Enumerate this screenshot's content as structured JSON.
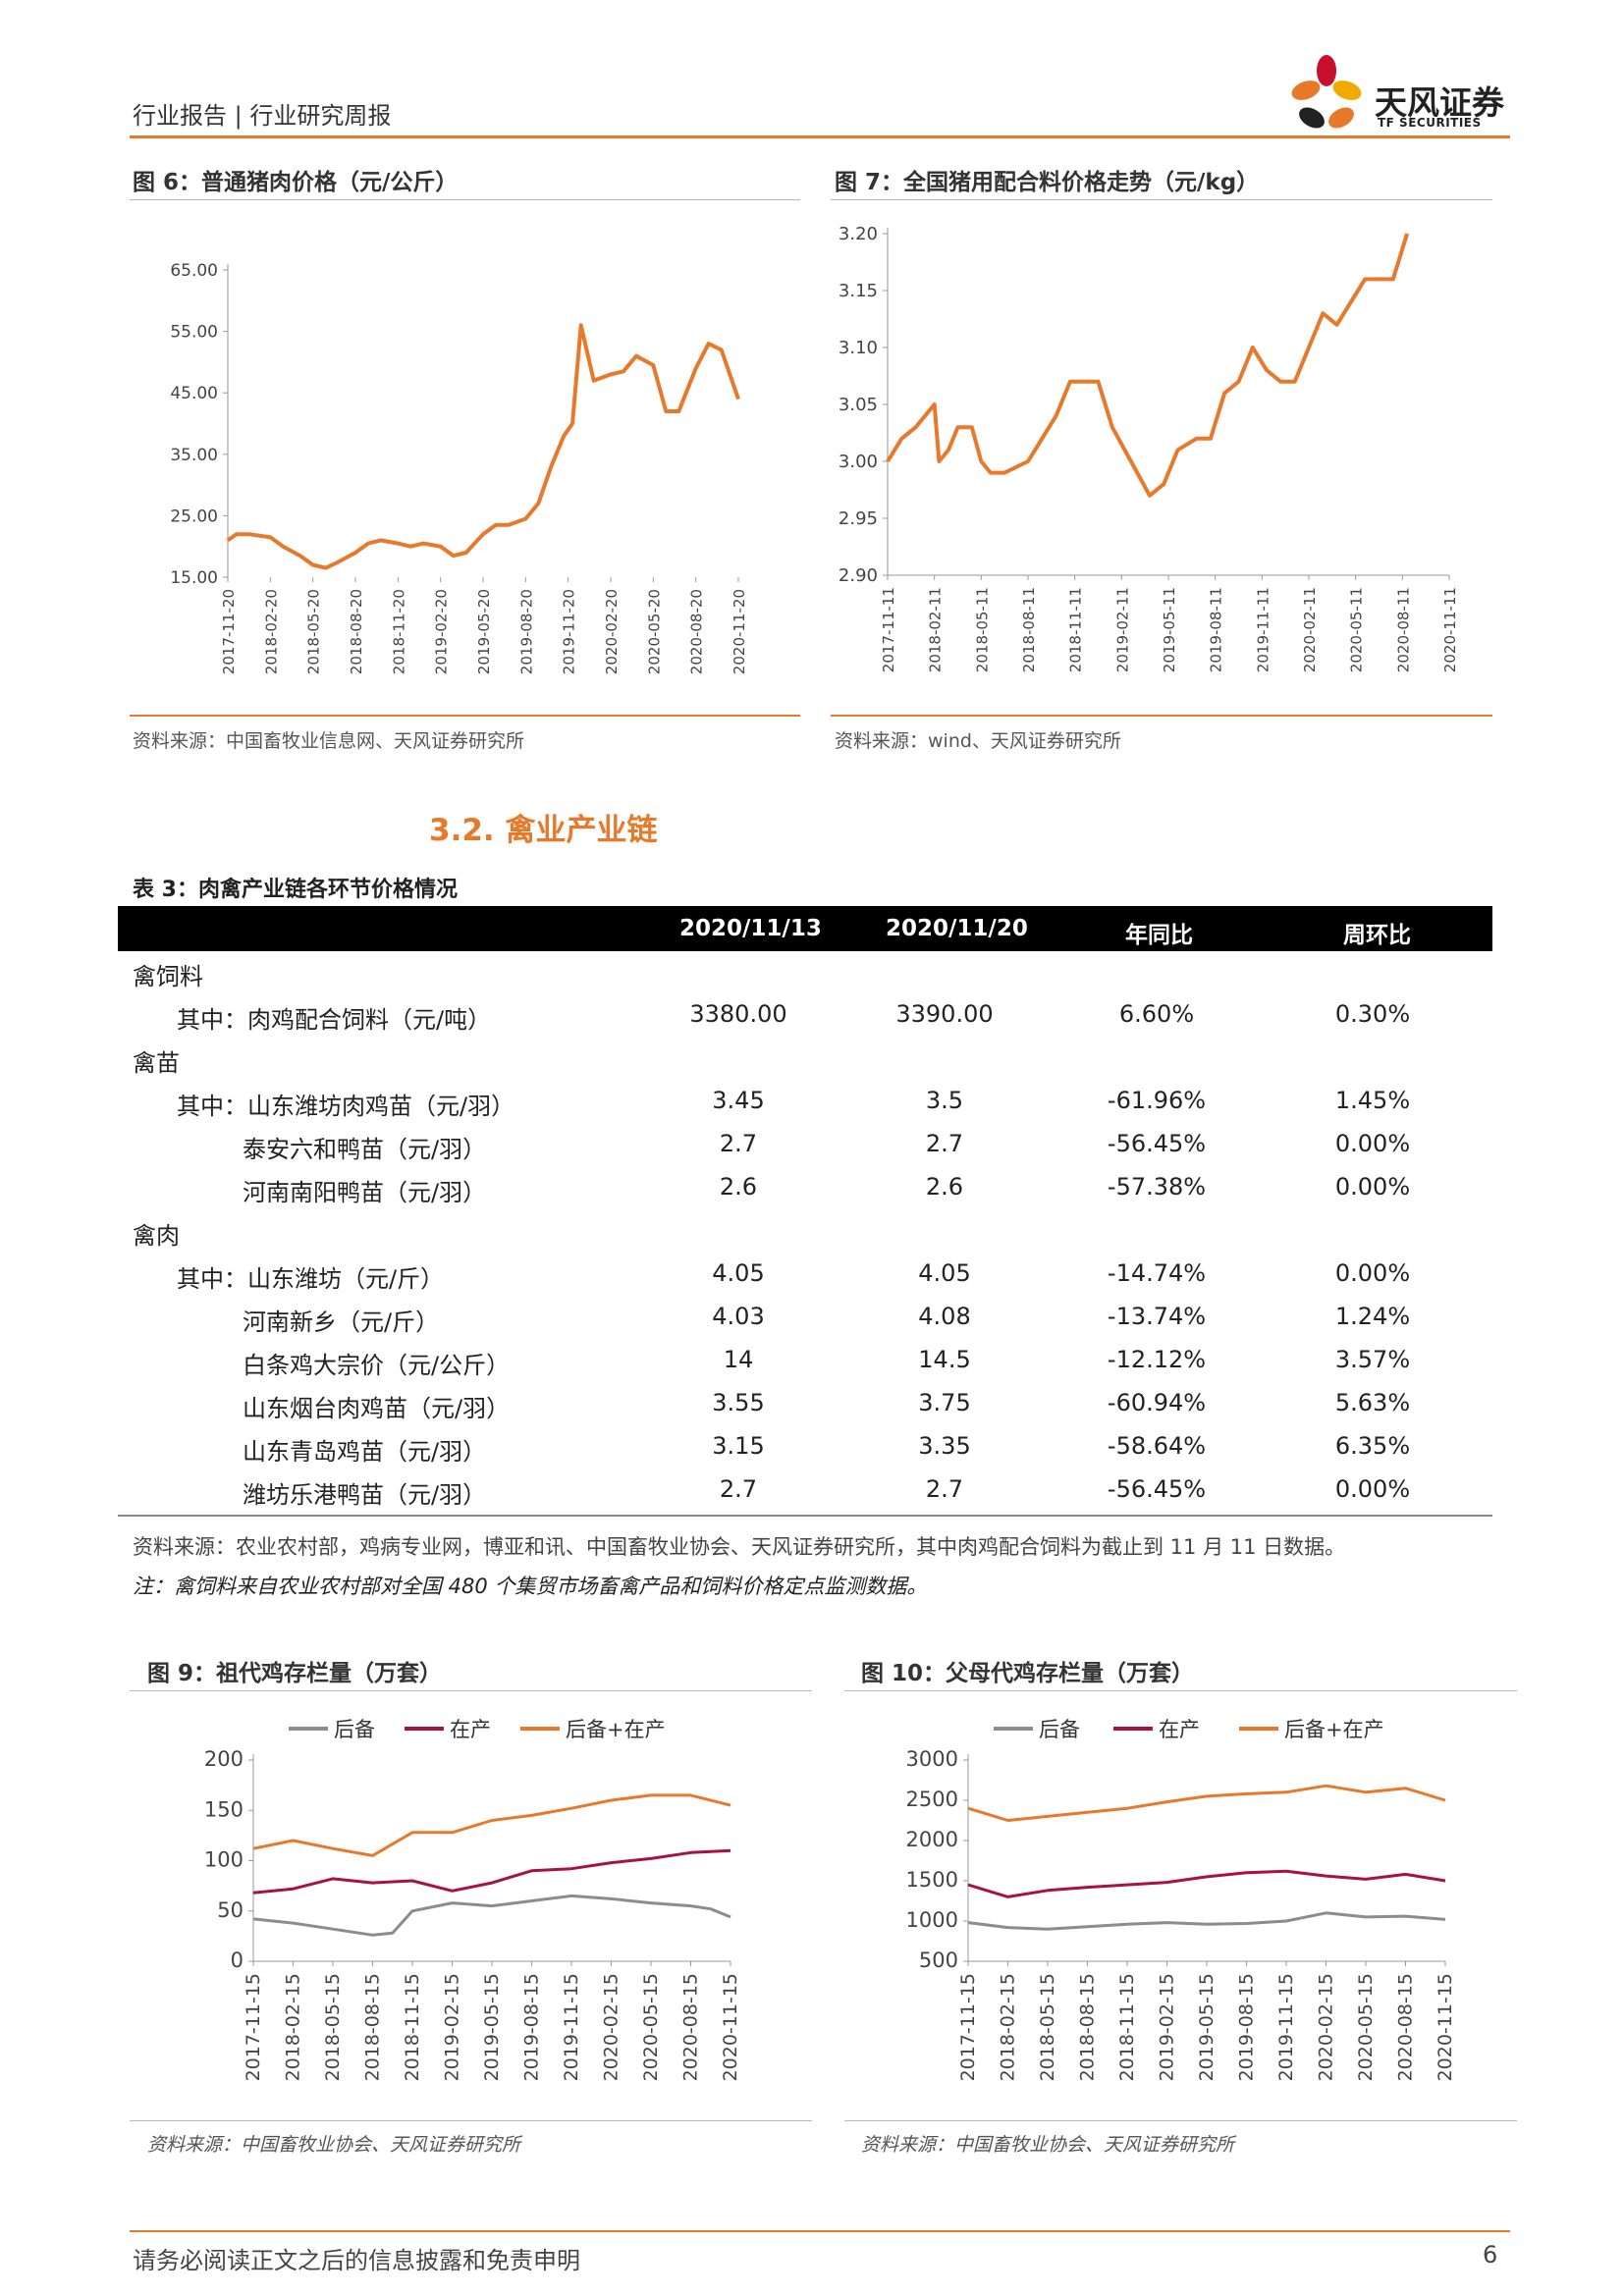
{
  "header": {
    "title": "行业报告 | 行业研究周报",
    "logo_cn": "天风证券",
    "logo_en": "TF SECURITIES"
  },
  "fig6": {
    "caption": "图 6：普通猪肉价格（元/公斤）",
    "source": "资料来源：中国畜牧业信息网、天风证券研究所"
  },
  "fig7": {
    "caption": "图 7：全国猪用配合料价格走势（元/kg）",
    "source": "资料来源：wind、天风证券研究所"
  },
  "section": {
    "title": "3.2. 禽业产业链"
  },
  "table3": {
    "caption": "表 3：肉禽产业链各环节价格情况",
    "headers": [
      "2020/11/13",
      "2020/11/20",
      "年同比",
      "周环比"
    ],
    "rows": [
      {
        "label": "禽饲料",
        "level": 0,
        "values": [
          "",
          "",
          "",
          ""
        ]
      },
      {
        "label": "其中：肉鸡配合饲料（元/吨）",
        "level": 1,
        "values": [
          "3380.00",
          "3390.00",
          "6.60%",
          "0.30%"
        ]
      },
      {
        "label": "禽苗",
        "level": 0,
        "values": [
          "",
          "",
          "",
          ""
        ]
      },
      {
        "label": "其中：山东潍坊肉鸡苗（元/羽）",
        "level": 1,
        "values": [
          "3.45",
          "3.5",
          "-61.96%",
          "1.45%"
        ]
      },
      {
        "label": "泰安六和鸭苗（元/羽）",
        "level": 2,
        "values": [
          "2.7",
          "2.7",
          "-56.45%",
          "0.00%"
        ]
      },
      {
        "label": "河南南阳鸭苗（元/羽）",
        "level": 2,
        "values": [
          "2.6",
          "2.6",
          "-57.38%",
          "0.00%"
        ]
      },
      {
        "label": "禽肉",
        "level": 0,
        "values": [
          "",
          "",
          "",
          ""
        ]
      },
      {
        "label": "其中：山东潍坊（元/斤）",
        "level": 1,
        "values": [
          "4.05",
          "4.05",
          "-14.74%",
          "0.00%"
        ]
      },
      {
        "label": "河南新乡（元/斤）",
        "level": 2,
        "values": [
          "4.03",
          "4.08",
          "-13.74%",
          "1.24%"
        ]
      },
      {
        "label": "白条鸡大宗价（元/公斤）",
        "level": 2,
        "values": [
          "14",
          "14.5",
          "-12.12%",
          "3.57%"
        ]
      },
      {
        "label": "山东烟台肉鸡苗（元/羽）",
        "level": 2,
        "values": [
          "3.55",
          "3.75",
          "-60.94%",
          "5.63%"
        ]
      },
      {
        "label": "山东青岛鸡苗（元/羽）",
        "level": 2,
        "values": [
          "3.15",
          "3.35",
          "-58.64%",
          "6.35%"
        ]
      },
      {
        "label": "潍坊乐港鸭苗（元/羽）",
        "level": 2,
        "values": [
          "2.7",
          "2.7",
          "-56.45%",
          "0.00%"
        ]
      }
    ],
    "source": "资料来源：农业农村部，鸡病专业网，博亚和讯、中国畜牧业协会、天风证券研究所，其中肉鸡配合饲料为截止到 11 月 11 日数据。",
    "note": "注：禽饲料来自农业农村部对全国 480 个集贸市场畜禽产品和饲料价格定点监测数据。"
  },
  "fig9": {
    "caption": "图 9：祖代鸡存栏量（万套）",
    "source": "资料来源：中国畜牧业协会、天风证券研究所"
  },
  "fig10": {
    "caption": "图 10：父母代鸡存栏量（万套）",
    "source": "资料来源：中国畜牧业协会、天风证券研究所"
  },
  "footer": {
    "disclaimer": "请务必阅读正文之后的信息披露和免责申明",
    "page": "6"
  },
  "colors": {
    "accent": "#e8782a",
    "series_orange": "#e8782a",
    "series_red": "#a8123e",
    "series_gray": "#8c8c8c"
  },
  "chart_data": [
    {
      "id": "fig6",
      "type": "line",
      "title": "图 6：普通猪肉价格（元/公斤）",
      "ylim": [
        15,
        65
      ],
      "yticks": [
        "15.00",
        "25.00",
        "35.00",
        "45.00",
        "55.00",
        "65.00"
      ],
      "xticks": [
        "2017-11-20",
        "2018-02-20",
        "2018-05-20",
        "2018-08-20",
        "2018-11-20",
        "2019-02-20",
        "2019-05-20",
        "2019-08-20",
        "2019-11-20",
        "2020-02-20",
        "2020-05-20",
        "2020-08-20",
        "2020-11-20"
      ],
      "series": [
        {
          "color": "#e8782a",
          "x": [
            0,
            0.2,
            0.5,
            1,
            1.3,
            1.7,
            2,
            2.3,
            2.6,
            3,
            3.3,
            3.6,
            4,
            4.3,
            4.6,
            5,
            5.3,
            5.6,
            6,
            6.3,
            6.6,
            7,
            7.3,
            7.6,
            7.9,
            8.1,
            8.3,
            8.6,
            9,
            9.3,
            9.6,
            10,
            10.3,
            10.6,
            11,
            11.3,
            11.6,
            12
          ],
          "values": [
            21,
            22,
            22,
            21.5,
            20,
            18.5,
            17,
            16.5,
            17.5,
            19,
            20.5,
            21,
            20.5,
            20,
            20.5,
            20,
            18.5,
            19,
            22,
            23.5,
            23.5,
            24.5,
            27,
            33,
            38,
            40,
            56,
            47,
            48,
            48.5,
            51,
            49.5,
            42,
            42,
            49,
            53,
            52,
            44
          ]
        }
      ]
    },
    {
      "id": "fig7",
      "type": "line",
      "title": "图 7：全国猪用配合料价格走势（元/kg）",
      "ylim": [
        2.9,
        3.2
      ],
      "yticks": [
        "2.90",
        "2.95",
        "3.00",
        "3.05",
        "3.10",
        "3.15",
        "3.20"
      ],
      "xticks": [
        "2017-11-11",
        "2018-02-11",
        "2018-05-11",
        "2018-08-11",
        "2018-11-11",
        "2019-02-11",
        "2019-05-11",
        "2019-08-11",
        "2019-11-11",
        "2020-02-11",
        "2020-05-11",
        "2020-08-11",
        "2020-11-11"
      ],
      "series": [
        {
          "color": "#e8782a",
          "x": [
            0,
            0.3,
            0.6,
            1,
            1.1,
            1.3,
            1.5,
            1.8,
            2,
            2.2,
            2.5,
            3,
            3.3,
            3.6,
            3.9,
            4.2,
            4.5,
            4.8,
            5.2,
            5.6,
            5.9,
            6.2,
            6.6,
            6.9,
            7.2,
            7.5,
            7.8,
            8.1,
            8.4,
            8.7,
            9,
            9.3,
            9.6,
            9.9,
            10.2,
            10.5,
            10.8,
            11.1
          ],
          "values": [
            3.0,
            3.02,
            3.03,
            3.05,
            3.0,
            3.01,
            3.03,
            3.03,
            3.0,
            2.99,
            2.99,
            3.0,
            3.02,
            3.04,
            3.07,
            3.07,
            3.07,
            3.03,
            3.0,
            2.97,
            2.98,
            3.01,
            3.02,
            3.02,
            3.06,
            3.07,
            3.1,
            3.08,
            3.07,
            3.07,
            3.1,
            3.13,
            3.12,
            3.14,
            3.16,
            3.16,
            3.16,
            3.2
          ]
        }
      ]
    },
    {
      "id": "fig9",
      "type": "line",
      "title": "图 9：祖代鸡存栏量（万套）",
      "ylim": [
        0,
        200
      ],
      "yticks": [
        "0",
        "50",
        "100",
        "150",
        "200"
      ],
      "xticks": [
        "2017-11-15",
        "2018-02-15",
        "2018-05-15",
        "2018-08-15",
        "2018-11-15",
        "2019-02-15",
        "2019-05-15",
        "2019-08-15",
        "2019-11-15",
        "2020-02-15",
        "2020-05-15",
        "2020-08-15",
        "2020-11-15"
      ],
      "legend": [
        "后备",
        "在产",
        "后备+在产"
      ],
      "series": [
        {
          "name": "后备",
          "color": "#8c8c8c",
          "x": [
            0,
            1,
            2,
            3,
            3.5,
            4,
            5,
            6,
            7,
            8,
            9,
            10,
            11,
            11.5,
            12
          ],
          "values": [
            42,
            38,
            32,
            26,
            28,
            50,
            58,
            55,
            60,
            65,
            62,
            58,
            55,
            52,
            44
          ]
        },
        {
          "name": "在产",
          "color": "#a8123e",
          "x": [
            0,
            1,
            2,
            3,
            4,
            5,
            6,
            7,
            8,
            9,
            10,
            11,
            12
          ],
          "values": [
            68,
            72,
            82,
            78,
            80,
            70,
            78,
            90,
            92,
            98,
            102,
            108,
            110
          ]
        },
        {
          "name": "后备+在产",
          "color": "#e8782a",
          "x": [
            0,
            1,
            2,
            3,
            4,
            5,
            6,
            7,
            8,
            9,
            10,
            11,
            12
          ],
          "values": [
            112,
            120,
            112,
            105,
            128,
            128,
            140,
            145,
            152,
            160,
            165,
            165,
            155
          ]
        }
      ]
    },
    {
      "id": "fig10",
      "type": "line",
      "title": "图 10：父母代鸡存栏量（万套）",
      "ylim": [
        500,
        3000
      ],
      "yticks": [
        "500",
        "1000",
        "1500",
        "2000",
        "2500",
        "3000"
      ],
      "xticks": [
        "2017-11-15",
        "2018-02-15",
        "2018-05-15",
        "2018-08-15",
        "2018-11-15",
        "2019-02-15",
        "2019-05-15",
        "2019-08-15",
        "2019-11-15",
        "2020-02-15",
        "2020-05-15",
        "2020-08-15",
        "2020-11-15"
      ],
      "legend": [
        "后备",
        "在产",
        "后备+在产"
      ],
      "series": [
        {
          "name": "后备",
          "color": "#8c8c8c",
          "x": [
            0,
            1,
            2,
            3,
            4,
            5,
            6,
            7,
            8,
            9,
            10,
            11,
            12
          ],
          "values": [
            980,
            920,
            900,
            930,
            960,
            980,
            960,
            970,
            1000,
            1100,
            1050,
            1060,
            1020
          ]
        },
        {
          "name": "在产",
          "color": "#a8123e",
          "x": [
            0,
            1,
            2,
            3,
            4,
            5,
            6,
            7,
            8,
            9,
            10,
            11,
            12
          ],
          "values": [
            1450,
            1300,
            1380,
            1420,
            1450,
            1480,
            1550,
            1600,
            1620,
            1560,
            1520,
            1580,
            1500
          ]
        },
        {
          "name": "后备+在产",
          "color": "#e8782a",
          "x": [
            0,
            1,
            2,
            3,
            4,
            5,
            6,
            7,
            8,
            9,
            10,
            11,
            12
          ],
          "values": [
            2400,
            2250,
            2300,
            2350,
            2400,
            2480,
            2550,
            2580,
            2600,
            2680,
            2600,
            2650,
            2500
          ]
        }
      ]
    }
  ]
}
